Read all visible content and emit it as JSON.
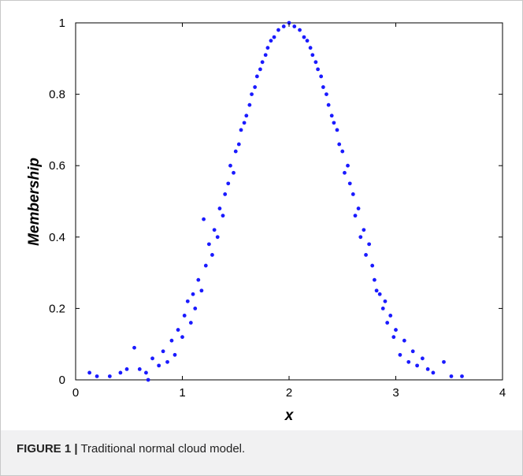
{
  "caption": {
    "label": "FIGURE 1 |",
    "text": "Traditional normal cloud model."
  },
  "chart_data": {
    "type": "scatter",
    "title": "",
    "xlabel": "x",
    "ylabel": "Membership",
    "xlim": [
      0,
      4
    ],
    "ylim": [
      0,
      1
    ],
    "xticks": [
      "0",
      "1",
      "2",
      "3",
      "4"
    ],
    "yticks": [
      "0",
      "0.2",
      "0.4",
      "0.6",
      "0.8",
      "1"
    ],
    "grid": false,
    "marker_color": "#1a1aff",
    "series": [
      {
        "points": [
          [
            0.13,
            0.02
          ],
          [
            0.2,
            0.01
          ],
          [
            0.32,
            0.01
          ],
          [
            0.42,
            0.02
          ],
          [
            0.48,
            0.03
          ],
          [
            0.55,
            0.09
          ],
          [
            0.6,
            0.03
          ],
          [
            0.66,
            0.02
          ],
          [
            0.68,
            0.0
          ],
          [
            0.72,
            0.06
          ],
          [
            0.78,
            0.04
          ],
          [
            0.82,
            0.08
          ],
          [
            0.86,
            0.05
          ],
          [
            0.9,
            0.11
          ],
          [
            0.93,
            0.07
          ],
          [
            0.96,
            0.14
          ],
          [
            1.0,
            0.12
          ],
          [
            1.02,
            0.18
          ],
          [
            1.05,
            0.22
          ],
          [
            1.08,
            0.16
          ],
          [
            1.1,
            0.24
          ],
          [
            1.12,
            0.2
          ],
          [
            1.15,
            0.28
          ],
          [
            1.18,
            0.25
          ],
          [
            1.2,
            0.45
          ],
          [
            1.22,
            0.32
          ],
          [
            1.25,
            0.38
          ],
          [
            1.28,
            0.35
          ],
          [
            1.3,
            0.42
          ],
          [
            1.33,
            0.4
          ],
          [
            1.35,
            0.48
          ],
          [
            1.38,
            0.46
          ],
          [
            1.4,
            0.52
          ],
          [
            1.43,
            0.55
          ],
          [
            1.45,
            0.6
          ],
          [
            1.48,
            0.58
          ],
          [
            1.5,
            0.64
          ],
          [
            1.53,
            0.66
          ],
          [
            1.55,
            0.7
          ],
          [
            1.58,
            0.72
          ],
          [
            1.6,
            0.74
          ],
          [
            1.63,
            0.77
          ],
          [
            1.65,
            0.8
          ],
          [
            1.68,
            0.82
          ],
          [
            1.7,
            0.85
          ],
          [
            1.73,
            0.87
          ],
          [
            1.75,
            0.89
          ],
          [
            1.78,
            0.91
          ],
          [
            1.8,
            0.93
          ],
          [
            1.83,
            0.95
          ],
          [
            1.86,
            0.96
          ],
          [
            1.9,
            0.98
          ],
          [
            1.95,
            0.99
          ],
          [
            2.0,
            1.0
          ],
          [
            2.05,
            0.99
          ],
          [
            2.1,
            0.98
          ],
          [
            2.14,
            0.96
          ],
          [
            2.17,
            0.95
          ],
          [
            2.2,
            0.93
          ],
          [
            2.22,
            0.91
          ],
          [
            2.25,
            0.89
          ],
          [
            2.27,
            0.87
          ],
          [
            2.3,
            0.85
          ],
          [
            2.32,
            0.82
          ],
          [
            2.35,
            0.8
          ],
          [
            2.37,
            0.77
          ],
          [
            2.4,
            0.74
          ],
          [
            2.42,
            0.72
          ],
          [
            2.45,
            0.7
          ],
          [
            2.47,
            0.66
          ],
          [
            2.5,
            0.64
          ],
          [
            2.52,
            0.58
          ],
          [
            2.55,
            0.6
          ],
          [
            2.57,
            0.55
          ],
          [
            2.6,
            0.52
          ],
          [
            2.62,
            0.46
          ],
          [
            2.65,
            0.48
          ],
          [
            2.67,
            0.4
          ],
          [
            2.7,
            0.42
          ],
          [
            2.72,
            0.35
          ],
          [
            2.75,
            0.38
          ],
          [
            2.78,
            0.32
          ],
          [
            2.8,
            0.28
          ],
          [
            2.82,
            0.25
          ],
          [
            2.85,
            0.24
          ],
          [
            2.88,
            0.2
          ],
          [
            2.9,
            0.22
          ],
          [
            2.92,
            0.16
          ],
          [
            2.95,
            0.18
          ],
          [
            2.98,
            0.12
          ],
          [
            3.0,
            0.14
          ],
          [
            3.04,
            0.07
          ],
          [
            3.08,
            0.11
          ],
          [
            3.12,
            0.05
          ],
          [
            3.16,
            0.08
          ],
          [
            3.2,
            0.04
          ],
          [
            3.25,
            0.06
          ],
          [
            3.3,
            0.03
          ],
          [
            3.35,
            0.02
          ],
          [
            3.45,
            0.05
          ],
          [
            3.52,
            0.01
          ],
          [
            3.62,
            0.01
          ]
        ]
      }
    ]
  }
}
